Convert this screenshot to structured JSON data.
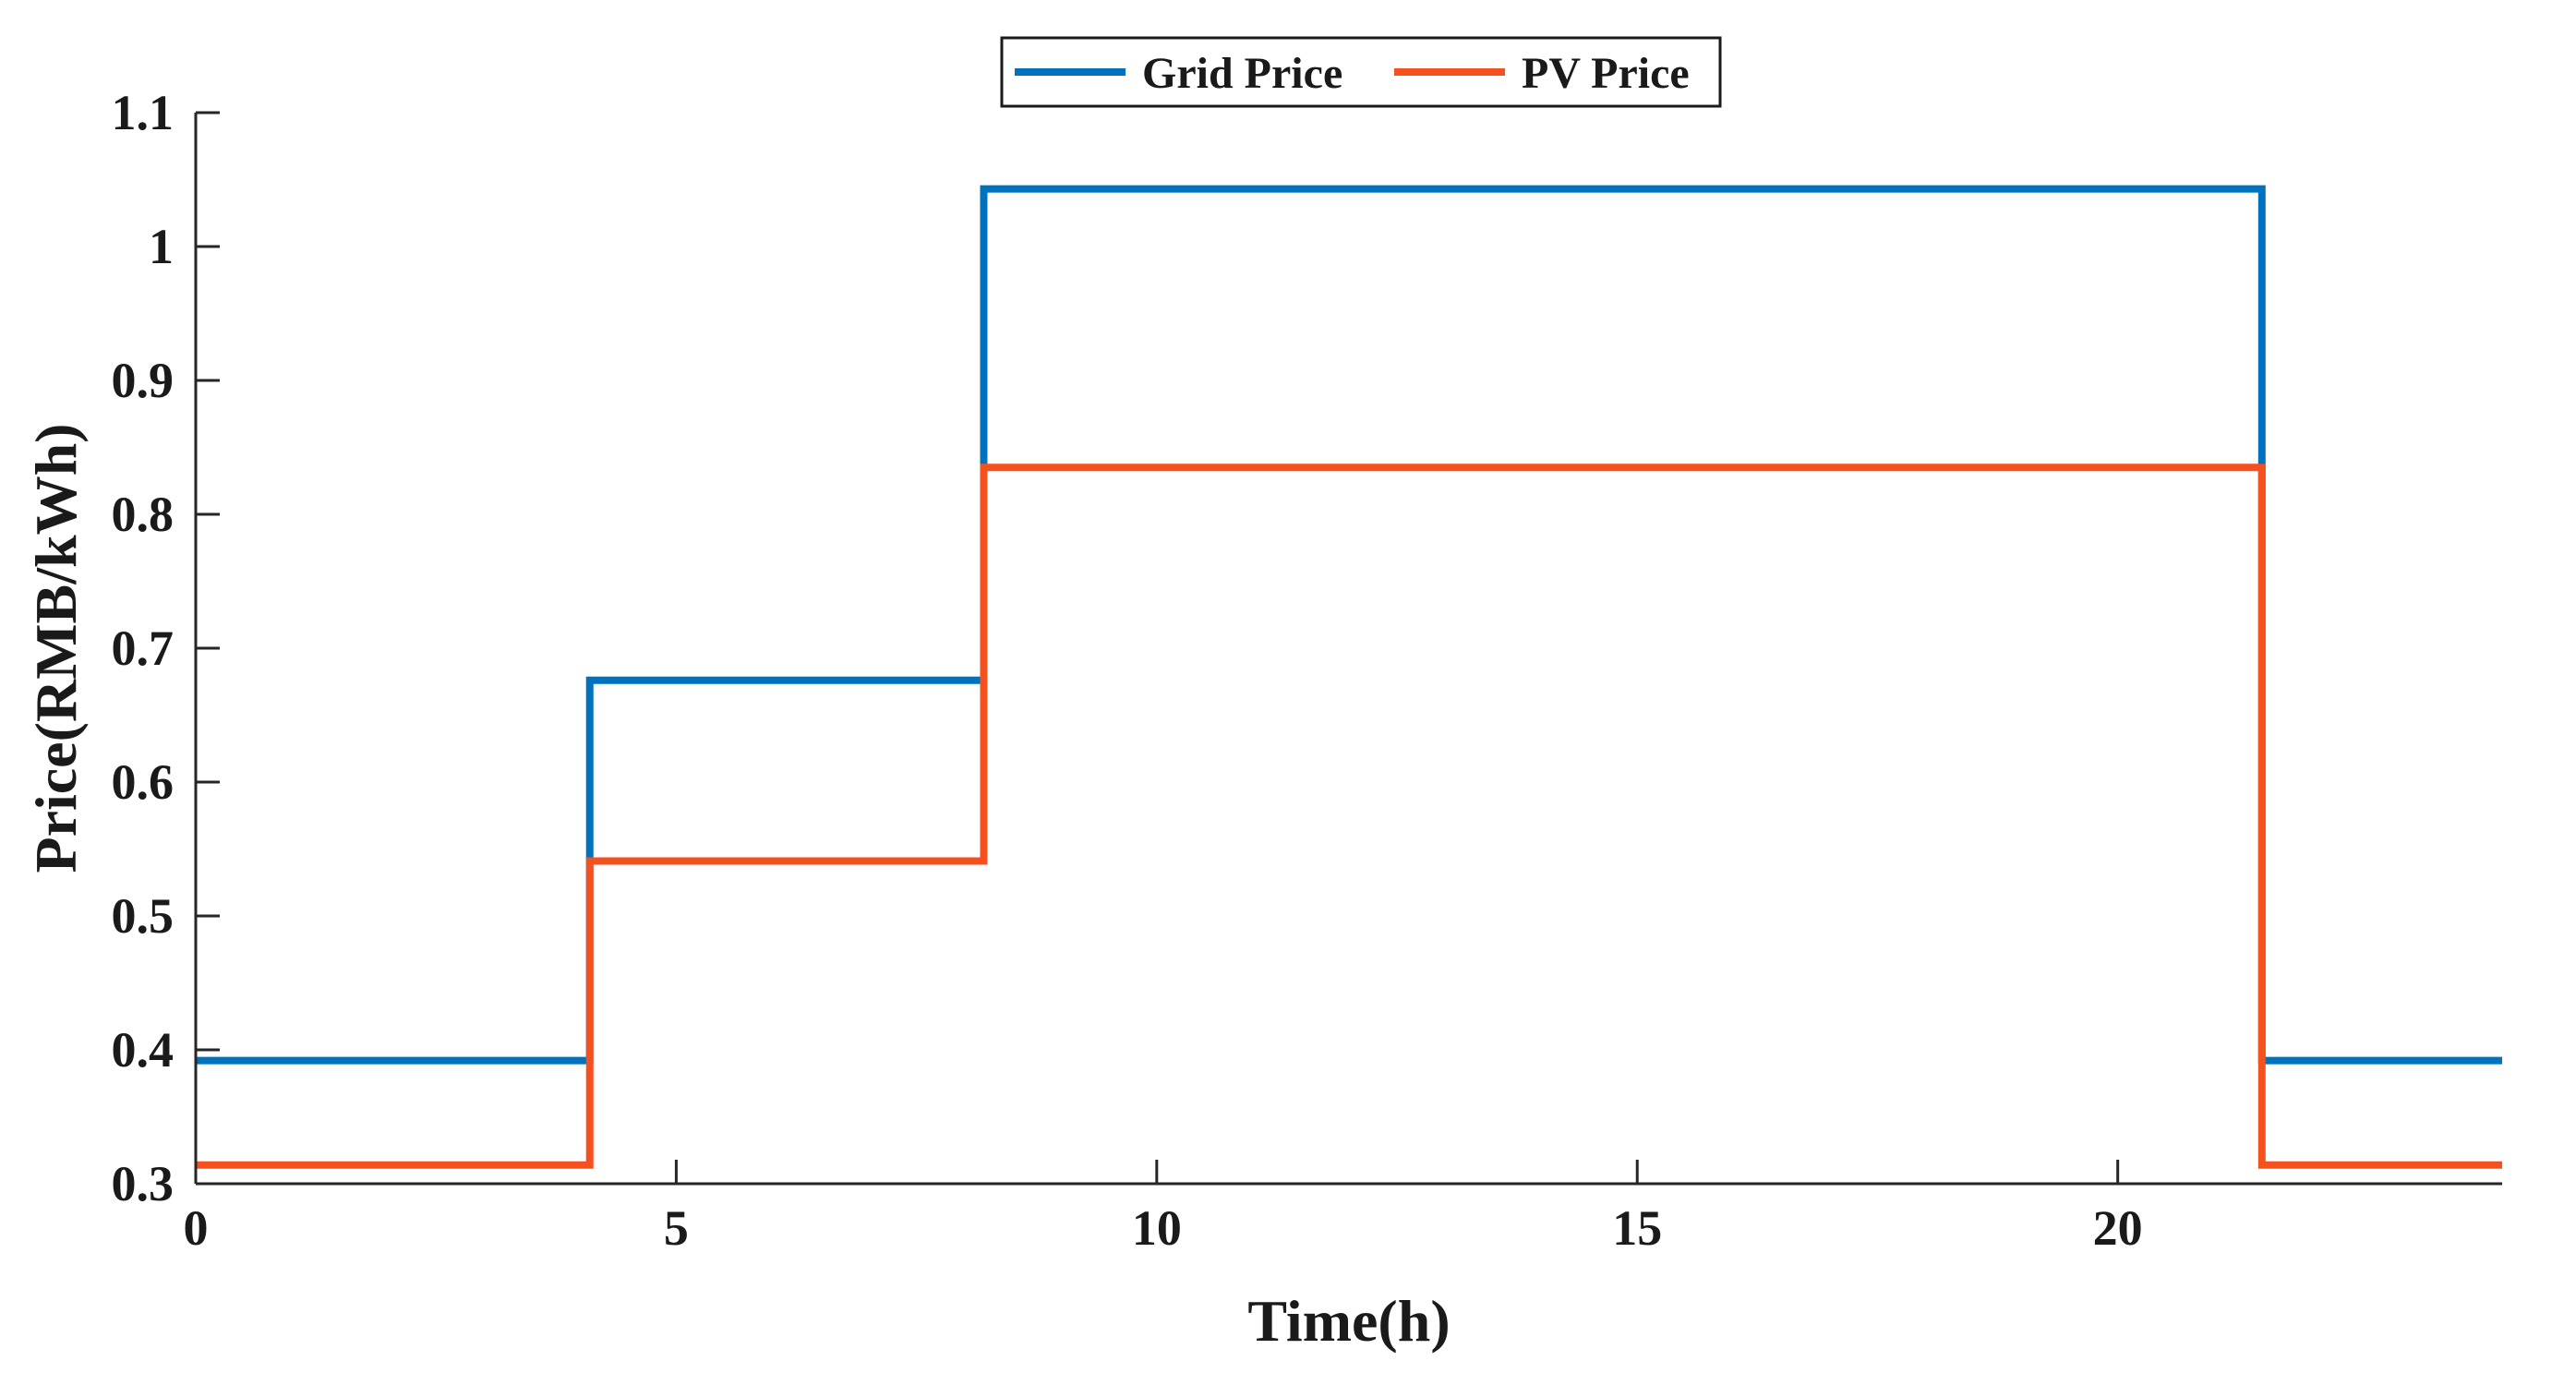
{
  "chart_data": {
    "type": "line",
    "step": "post",
    "title": "",
    "xlabel": "Time(h)",
    "ylabel": "Price(RMB/kWh)",
    "xlim": [
      0,
      24
    ],
    "ylim": [
      0.3,
      1.1
    ],
    "xticks": [
      0,
      5,
      10,
      15,
      20
    ],
    "yticks": [
      0.3,
      0.4,
      0.5,
      0.6,
      0.7,
      0.8,
      0.9,
      1.0,
      1.1
    ],
    "xtick_labels": [
      "0",
      "5",
      "10",
      "15",
      "20"
    ],
    "ytick_labels": [
      "0.3",
      "0.4",
      "0.5",
      "0.6",
      "0.7",
      "0.8",
      "0.9",
      "1",
      "1.1"
    ],
    "grid": false,
    "legend": {
      "position": "top-center",
      "orientation": "horizontal",
      "boxed": true
    },
    "series": [
      {
        "name": "Grid Price",
        "color": "#0072BD",
        "x": [
          0,
          4.1,
          8.2,
          21.5
        ],
        "values": [
          0.392,
          0.676,
          1.043,
          0.392
        ],
        "x_end": 24
      },
      {
        "name": "PV Price",
        "color": "#F4511E",
        "x": [
          0,
          4.1,
          8.2,
          21.5
        ],
        "values": [
          0.314,
          0.541,
          0.835,
          0.314
        ],
        "x_end": 24
      }
    ]
  }
}
